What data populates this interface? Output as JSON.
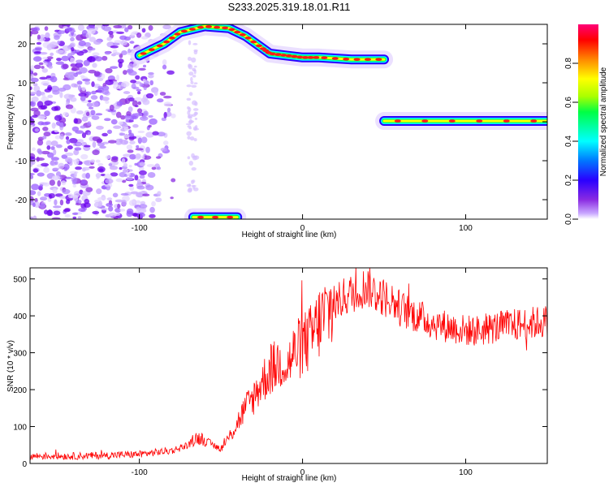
{
  "title": "S233.2025.319.18.01.R11",
  "chart_data": [
    {
      "type": "heatmap",
      "xlabel": "Height of straight line (km)",
      "ylabel": "Frequency (Hz)",
      "xlim": [
        -167,
        150
      ],
      "ylim": [
        -25,
        25
      ],
      "xticks": [
        -100,
        0,
        100
      ],
      "yticks": [
        -20,
        -10,
        0,
        10,
        20
      ],
      "colorbar": {
        "label": "Normalized spectral amplitude",
        "range": [
          0,
          1
        ],
        "ticks": [
          0.0,
          0.2,
          0.4,
          0.6,
          0.8
        ],
        "colors": [
          "#ffffff",
          "#c9a8ff",
          "#8a2be2",
          "#2a00ff",
          "#0077ff",
          "#00ffff",
          "#00ff44",
          "#aaff00",
          "#ffff00",
          "#ff8800",
          "#ff0000",
          "#ff0077"
        ]
      },
      "ridges": [
        {
          "name": "",
          "points": [
            [
              -100,
              17
            ],
            [
              -85,
              20
            ],
            [
              -75,
              23
            ],
            [
              -60,
              24.5
            ],
            [
              -45,
              24
            ],
            [
              -35,
              22
            ],
            [
              -25,
              19
            ],
            [
              -20,
              17.5
            ],
            [
              -10,
              17
            ],
            [
              0,
              16.5
            ],
            [
              10,
              16.5
            ],
            [
              30,
              16
            ],
            [
              50,
              16
            ]
          ]
        },
        {
          "name": "",
          "points": [
            [
              50,
              0.2
            ],
            [
              100,
              0.2
            ],
            [
              150,
              0.2
            ]
          ]
        },
        {
          "name": "",
          "points": [
            [
              -67,
              -24.5
            ],
            [
              -40,
              -24.5
            ]
          ]
        }
      ],
      "noise_region": {
        "x": [
          -167,
          -85
        ],
        "y": [
          -25,
          25
        ]
      }
    },
    {
      "type": "line",
      "xlabel": "Height of straight line (km)",
      "ylabel": "SNR (10 * v/v)",
      "xlim": [
        -167,
        150
      ],
      "ylim": [
        0,
        530
      ],
      "xticks": [
        -100,
        0,
        100
      ],
      "yticks": [
        0,
        100,
        200,
        300,
        400,
        500
      ],
      "line_color": "#ff0000",
      "series": [
        {
          "name": "",
          "x": [
            -167,
            -140,
            -120,
            -100,
            -90,
            -80,
            -70,
            -65,
            -60,
            -55,
            -50,
            -45,
            -40,
            -35,
            -30,
            -25,
            -20,
            -15,
            -12,
            -10,
            -5,
            0,
            5,
            10,
            15,
            20,
            25,
            30,
            35,
            40,
            45,
            50,
            55,
            60,
            70,
            80,
            90,
            100,
            110,
            120,
            130,
            140,
            150
          ],
          "y": [
            20,
            20,
            22,
            25,
            30,
            35,
            50,
            70,
            65,
            50,
            40,
            70,
            110,
            150,
            180,
            220,
            250,
            270,
            280,
            260,
            300,
            320,
            340,
            380,
            410,
            430,
            450,
            460,
            470,
            480,
            460,
            450,
            440,
            420,
            400,
            380,
            370,
            360,
            360,
            370,
            375,
            380,
            385
          ]
        }
      ]
    }
  ]
}
